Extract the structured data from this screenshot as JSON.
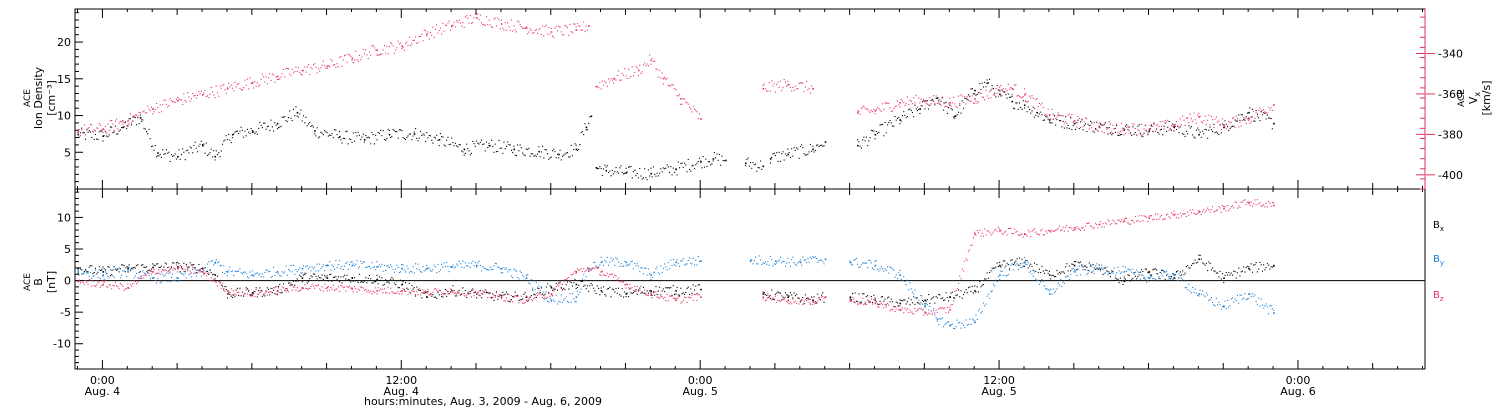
{
  "colors": {
    "density": "#000000",
    "speed": "#e8325e",
    "bx": "#000000",
    "by": "#1a7fd6",
    "bz": "#e8325e",
    "axis": "#000000"
  },
  "x_axis": {
    "label": "hours:minutes, Aug.  3, 2009 - Aug.  6, 2009",
    "major_ticks": [
      {
        "hours": 0,
        "time": "0:00",
        "date": "Aug. 4"
      },
      {
        "hours": 12,
        "time": "12:00",
        "date": "Aug. 4"
      },
      {
        "hours": 24,
        "time": "0:00",
        "date": "Aug. 5"
      },
      {
        "hours": 36,
        "time": "12:00",
        "date": "Aug. 5"
      },
      {
        "hours": 48,
        "time": "0:00",
        "date": "Aug. 6"
      }
    ],
    "range_hours": [
      -1.1,
      53.1
    ]
  },
  "chart_data": [
    {
      "type": "scatter",
      "ylabel": {
        "l1": "ACE",
        "l2": "Ion Density",
        "l3": "[cm⁻³]"
      },
      "y2label": {
        "l1": "ACE",
        "l2": "V",
        "l2sub": "x",
        "l3": "[km/s]"
      },
      "ylim": [
        0,
        24.5
      ],
      "yticks": [
        5,
        10,
        15,
        20
      ],
      "y2lim": [
        -407,
        -318
      ],
      "y2ticks": [
        -340,
        -360,
        -380,
        -400
      ],
      "series": [
        {
          "key": "density",
          "axis": "left",
          "segments": [
            {
              "x": [
                -1.0,
                0.0,
                0.8,
                1.5,
                2.2,
                3.0,
                4.0,
                4.5,
                5.2,
                6.0,
                7.0,
                7.8,
                8.5,
                9.5,
                10.5,
                11.5,
                12.5,
                13.5,
                14.5,
                15.5,
                16.5,
                17.5,
                18.3,
                19.0,
                19.4,
                19.6
              ],
              "y": [
                7.5,
                7.3,
                8.5,
                9.8,
                5.0,
                4.5,
                6.0,
                4.5,
                7.5,
                8.0,
                9.0,
                10.5,
                8.0,
                7.2,
                6.8,
                7.5,
                7.6,
                6.8,
                5.5,
                6.0,
                5.5,
                5.2,
                4.8,
                5.5,
                8.5,
                10.0
              ]
            },
            {
              "x": [
                19.8,
                20.2,
                21.0,
                22.0,
                23.0,
                24.0,
                24.5,
                25.0
              ],
              "y": [
                3.0,
                2.6,
                2.3,
                2.2,
                2.8,
                3.8,
                4.2,
                4.0
              ]
            },
            {
              "x": [
                25.8,
                26.5
              ],
              "y": [
                3.6,
                3.2
              ]
            },
            {
              "x": [
                26.8,
                27.5,
                28.5,
                29.0
              ],
              "y": [
                4.2,
                4.8,
                5.5,
                6.5
              ]
            },
            {
              "x": [
                30.3,
                31.0,
                32.0,
                32.8,
                33.5,
                34.2,
                35.0,
                35.5,
                36.0,
                36.5,
                37.0,
                37.5,
                38.0,
                39.0,
                40.0,
                41.0,
                42.0,
                43.0,
                44.0,
                45.0,
                46.0,
                47.0
              ],
              "y": [
                6.0,
                7.5,
                9.5,
                11.0,
                12.5,
                10.0,
                13.5,
                14.5,
                13.0,
                12.0,
                11.5,
                10.5,
                9.5,
                9.0,
                8.5,
                8.2,
                8.0,
                8.5,
                7.5,
                8.5,
                10.5,
                9.0
              ]
            }
          ]
        },
        {
          "key": "speed",
          "axis": "right",
          "segments": [
            {
              "x": [
                -1.0,
                0.0,
                1.0,
                2.0,
                3.0,
                4.0,
                5.0,
                6.0,
                7.0,
                8.0,
                9.0,
                10.0,
                11.0,
                12.0,
                13.0,
                14.0,
                15.0,
                16.0,
                17.0,
                18.0,
                19.0,
                19.5
              ],
              "y": [
                -378,
                -377,
                -373,
                -367,
                -363,
                -360,
                -357,
                -354,
                -351,
                -348,
                -346,
                -342,
                -338,
                -336,
                -330,
                -326,
                -322,
                -325,
                -327,
                -329,
                -328,
                -326
              ]
            },
            {
              "x": [
                19.8,
                20.5,
                21.5,
                22.0,
                22.5,
                23.2,
                24.0
              ],
              "y": [
                -356,
                -352,
                -348,
                -343,
                -352,
                -362,
                -372
              ]
            },
            {
              "x": [
                26.5,
                27.5,
                28.5
              ],
              "y": [
                -357,
                -355,
                -357
              ]
            },
            {
              "x": [
                30.3,
                31.0,
                32.0,
                33.0,
                34.0,
                35.0,
                36.0,
                36.5,
                37.0,
                38.0,
                39.0,
                40.0,
                41.0,
                42.0,
                43.0,
                44.0,
                45.0,
                46.0,
                47.0
              ],
              "y": [
                -369,
                -368,
                -364,
                -363,
                -364,
                -362,
                -358,
                -357,
                -360,
                -370,
                -373,
                -376,
                -377,
                -377,
                -375,
                -371,
                -375,
                -372,
                -365
              ]
            }
          ]
        }
      ]
    },
    {
      "type": "scatter",
      "ylabel": {
        "l1": "ACE",
        "l2": "B",
        "l3": "[nT]"
      },
      "ylim": [
        -14,
        14.5
      ],
      "yticks": [
        10,
        5,
        0,
        -5,
        -10
      ],
      "zero_line": true,
      "legend": [
        {
          "key": "bx",
          "label": "B",
          "sub": "x"
        },
        {
          "key": "by",
          "label": "B",
          "sub": "y"
        },
        {
          "key": "bz",
          "label": "B",
          "sub": "z"
        }
      ],
      "series": [
        {
          "key": "bx",
          "segments": [
            {
              "x": [
                -1.0,
                0.0,
                1.0,
                2.0,
                3.0,
                4.0,
                4.5,
                5.0,
                6.0,
                7.0,
                8.0,
                9.0,
                10.0,
                11.0,
                12.0,
                13.0,
                14.0,
                15.0,
                16.0,
                17.0,
                18.0,
                19.0,
                20.0,
                21.0,
                22.0,
                23.0,
                24.0
              ],
              "y": [
                2.0,
                1.5,
                2.0,
                2.2,
                2.3,
                2.0,
                1.0,
                -2.0,
                -1.8,
                -1.5,
                0.5,
                0.5,
                0.5,
                0.3,
                -0.5,
                -2.5,
                -1.5,
                -2.0,
                -2.5,
                -2.5,
                -1.0,
                -0.5,
                -1.5,
                -2.0,
                -1.5,
                -1.5,
                -1.3
              ]
            },
            {
              "x": [
                26.5,
                27.5,
                28.5,
                29.0
              ],
              "y": [
                -2.0,
                -2.5,
                -3.0,
                -2.5
              ]
            },
            {
              "x": [
                30.0,
                31.0,
                32.0,
                33.0,
                34.0,
                35.0,
                36.0,
                37.0,
                38.0,
                39.0,
                40.0,
                41.0,
                42.0,
                43.0,
                44.0,
                45.0,
                46.0,
                47.0
              ],
              "y": [
                -2.5,
                -3.0,
                -3.5,
                -3.0,
                -2.5,
                -1.5,
                2.5,
                3.0,
                1.0,
                2.5,
                2.0,
                0.0,
                1.5,
                0.5,
                3.5,
                0.5,
                2.0,
                2.5
              ]
            }
          ]
        },
        {
          "key": "by",
          "segments": [
            {
              "x": [
                -1.0,
                0.0,
                1.0,
                2.0,
                3.0,
                4.0,
                4.5,
                5.0,
                6.0,
                7.0,
                8.0,
                9.0,
                10.0,
                11.0,
                12.0,
                13.0,
                14.0,
                15.0,
                16.0,
                17.0,
                18.0,
                19.0,
                19.5,
                20.0,
                21.0,
                22.0,
                23.0,
                24.0
              ],
              "y": [
                1.5,
                1.0,
                1.5,
                0.5,
                0.5,
                1.5,
                3.0,
                1.5,
                1.0,
                1.5,
                2.0,
                2.5,
                2.5,
                2.3,
                2.0,
                2.0,
                2.3,
                2.5,
                2.0,
                0.5,
                -3.0,
                -2.5,
                2.0,
                3.0,
                3.0,
                1.0,
                3.0,
                3.2
              ]
            },
            {
              "x": [
                26.0,
                27.0,
                28.0,
                29.0
              ],
              "y": [
                3.3,
                3.2,
                3.0,
                3.5
              ]
            },
            {
              "x": [
                30.0,
                31.0,
                32.0,
                33.0,
                33.5,
                34.0,
                35.0,
                36.0,
                37.0,
                38.0,
                39.0,
                40.0,
                41.0,
                42.0,
                43.0,
                44.0,
                45.0,
                46.0,
                47.0
              ],
              "y": [
                3.0,
                2.5,
                1.0,
                -4.0,
                -6.0,
                -7.0,
                -6.5,
                1.0,
                3.0,
                -2.0,
                1.5,
                2.0,
                1.5,
                0.5,
                1.0,
                -2.0,
                -4.0,
                -2.0,
                -5.0
              ]
            }
          ]
        },
        {
          "key": "bz",
          "segments": [
            {
              "x": [
                -1.0,
                0.0,
                1.0,
                2.0,
                3.0,
                4.0,
                5.0,
                6.0,
                7.0,
                8.0,
                9.0,
                10.0,
                11.0,
                12.0,
                13.0,
                14.0,
                15.0,
                16.0,
                17.0,
                18.0,
                19.0,
                19.5,
                20.0,
                21.0,
                22.0,
                23.0,
                24.0
              ],
              "y": [
                0.0,
                -0.5,
                -1.0,
                1.5,
                2.0,
                1.5,
                -1.5,
                -2.0,
                -1.5,
                -1.0,
                -1.0,
                -1.2,
                -1.5,
                -1.5,
                -1.8,
                -1.5,
                -2.0,
                -2.5,
                -3.0,
                -2.0,
                1.5,
                2.0,
                1.5,
                -0.5,
                -2.0,
                -3.0,
                -2.5
              ]
            },
            {
              "x": [
                26.5,
                27.5,
                28.5,
                29.0
              ],
              "y": [
                -2.5,
                -3.0,
                -3.2,
                -2.5
              ]
            },
            {
              "x": [
                30.0,
                31.0,
                32.0,
                33.0,
                34.0,
                35.0,
                36.0,
                37.0,
                38.0,
                39.0,
                40.0,
                41.0,
                42.0,
                43.0,
                44.0,
                45.0,
                46.0,
                47.0
              ],
              "y": [
                -3.0,
                -3.5,
                -4.5,
                -5.0,
                -4.5,
                7.5,
                8.0,
                7.5,
                8.0,
                8.5,
                9.0,
                9.5,
                10.0,
                10.5,
                11.0,
                11.5,
                12.5,
                12.0
              ]
            }
          ]
        }
      ]
    }
  ]
}
